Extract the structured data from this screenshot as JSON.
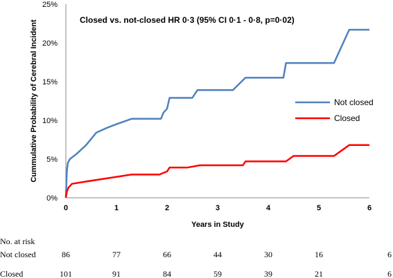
{
  "chart_data": {
    "type": "line",
    "title": "",
    "annotation": "Closed vs. not-closed HR 0·3 (95% CI 0·1 - 0·8, p=0·02)",
    "xlabel": "Years in Study",
    "ylabel": "Cummulative Probability of Cerebral Incident",
    "xlim": [
      0,
      6
    ],
    "ylim": [
      0,
      25
    ],
    "x_ticks": [
      "0",
      "1",
      "2",
      "3",
      "4",
      "5",
      "6"
    ],
    "y_ticks": [
      "0%",
      "5%",
      "10%",
      "15%",
      "20%",
      "25%"
    ],
    "grid": false,
    "legend_position": "right",
    "series": [
      {
        "name": "Not closed",
        "color": "#4F81BD",
        "points": [
          [
            0,
            0
          ],
          [
            0.02,
            3.5
          ],
          [
            0.04,
            4.5
          ],
          [
            0.08,
            5.0
          ],
          [
            0.2,
            5.6
          ],
          [
            0.4,
            6.8
          ],
          [
            0.6,
            8.4
          ],
          [
            0.8,
            9.0
          ],
          [
            1.0,
            9.5
          ],
          [
            1.3,
            10.2
          ],
          [
            1.88,
            10.2
          ],
          [
            1.93,
            11.0
          ],
          [
            2.0,
            11.5
          ],
          [
            2.05,
            12.9
          ],
          [
            2.5,
            12.9
          ],
          [
            2.6,
            13.9
          ],
          [
            3.3,
            13.9
          ],
          [
            3.55,
            15.5
          ],
          [
            4.3,
            15.5
          ],
          [
            4.35,
            17.4
          ],
          [
            5.3,
            17.4
          ],
          [
            5.6,
            21.7
          ],
          [
            6.0,
            21.7
          ]
        ]
      },
      {
        "name": "Closed",
        "color": "#FF0000",
        "points": [
          [
            0,
            0
          ],
          [
            0.02,
            0.8
          ],
          [
            0.05,
            1.3
          ],
          [
            0.12,
            1.8
          ],
          [
            0.4,
            2.1
          ],
          [
            0.8,
            2.5
          ],
          [
            1.3,
            3.0
          ],
          [
            1.85,
            3.0
          ],
          [
            2.0,
            3.4
          ],
          [
            2.05,
            3.9
          ],
          [
            2.4,
            3.9
          ],
          [
            2.65,
            4.2
          ],
          [
            3.5,
            4.2
          ],
          [
            3.55,
            4.7
          ],
          [
            4.35,
            4.7
          ],
          [
            4.5,
            5.4
          ],
          [
            5.3,
            5.4
          ],
          [
            5.6,
            6.8
          ],
          [
            6.0,
            6.8
          ]
        ]
      }
    ]
  },
  "risk_table": {
    "header": "No. at risk",
    "rows": [
      {
        "label": "Not closed",
        "values": [
          "86",
          "77",
          "66",
          "44",
          "30",
          "16",
          "6"
        ]
      },
      {
        "label": "Closed",
        "values": [
          "101",
          "91",
          "84",
          "59",
          "39",
          "21",
          "6"
        ]
      }
    ]
  }
}
